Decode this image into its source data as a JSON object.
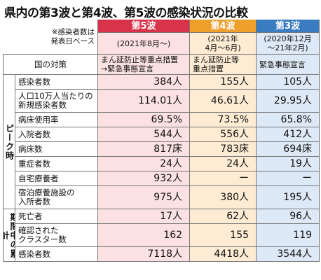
{
  "title": "県内の第3波と第4波、第5波の感染状況の比較",
  "note": [
    "※感染者数は",
    "発表日ベース"
  ],
  "columns": [
    {
      "name": "第5波",
      "period": [
        "(2021年8月〜)"
      ]
    },
    {
      "name": "第4波",
      "period": [
        "(2021年",
        "4月〜6月)"
      ]
    },
    {
      "name": "第3波",
      "period": [
        "(2020年12月",
        "〜21年2月)"
      ]
    }
  ],
  "policy": {
    "label": "国の対策",
    "cells": [
      [
        "まん延防止等重点措置",
        "→緊急事態宣言"
      ],
      [
        "まん延防止等",
        "重点措置"
      ],
      [
        "緊急事態宣言"
      ]
    ]
  },
  "groups": [
    {
      "label": "ピーク時",
      "rows": [
        {
          "label": [
            "感染者数"
          ],
          "cells": [
            "384人",
            "155人",
            "105人"
          ]
        },
        {
          "label": [
            "人口10万人当たりの",
            "新規感染者数"
          ],
          "cells": [
            "114.01人",
            "46.61人",
            "29.95人"
          ]
        },
        {
          "label": [
            "病床使用率"
          ],
          "cells": [
            "69.5%",
            "73.5%",
            "65.8%"
          ]
        },
        {
          "label": [
            "入院者数"
          ],
          "cells": [
            "544人",
            "556人",
            "412人"
          ]
        },
        {
          "label": [
            "病床数"
          ],
          "cells": [
            "817床",
            "783床",
            "694床"
          ]
        },
        {
          "label": [
            "重症者数"
          ],
          "cells": [
            "24人",
            "24人",
            "19人"
          ]
        },
        {
          "label": [
            "自宅療養者"
          ],
          "cells": [
            "932人",
            "ー",
            "ー"
          ]
        },
        {
          "label": [
            "宿泊療養施設の",
            "入所者数"
          ],
          "cells": [
            "975人",
            "380人",
            "195人"
          ]
        }
      ]
    },
    {
      "label": "期間中の累計",
      "rows": [
        {
          "label": [
            "死亡者"
          ],
          "cells": [
            "17人",
            "62人",
            "96人"
          ]
        },
        {
          "label": [
            "確認された",
            "クラスター数"
          ],
          "cells": [
            "162",
            "155",
            "119"
          ]
        },
        {
          "label": [
            "感染者数"
          ],
          "cells": [
            "7118人",
            "4418人",
            "3544人"
          ]
        }
      ]
    }
  ]
}
